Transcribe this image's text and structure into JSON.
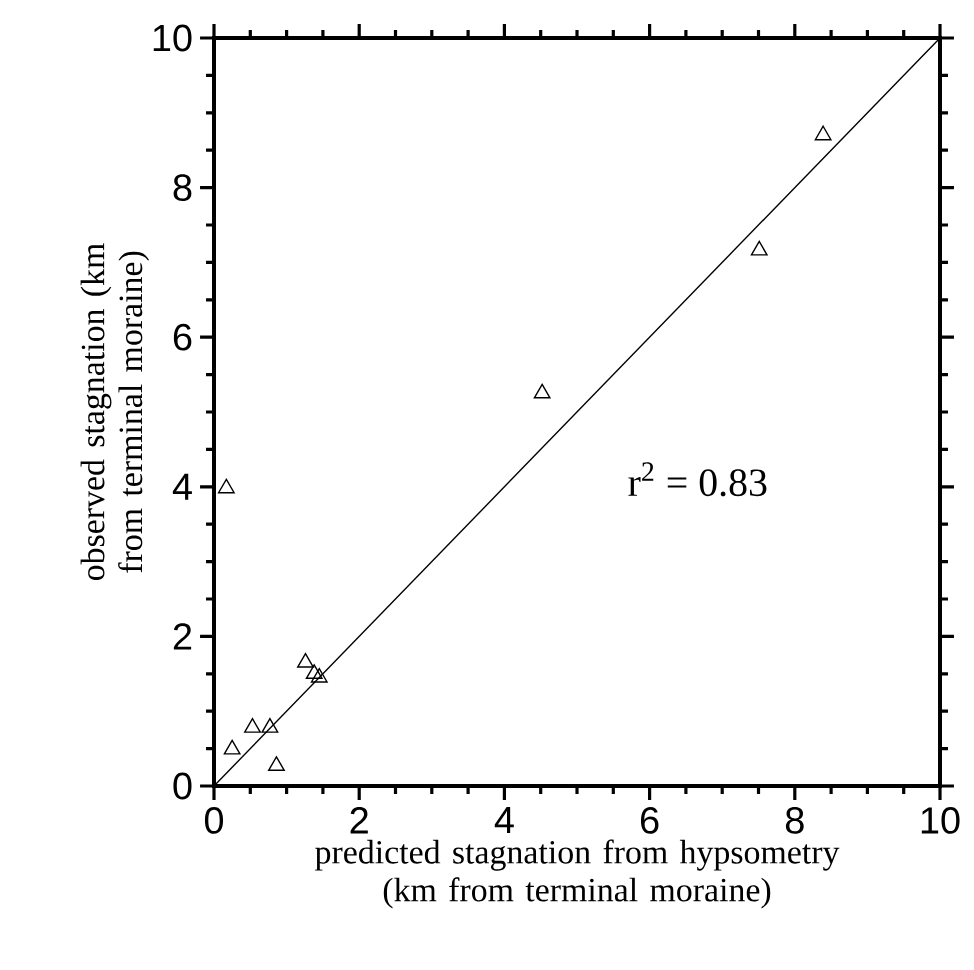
{
  "chart_data": {
    "type": "scatter",
    "xlabel": "predicted stagnation from hypsometry (km from terminal moraine)",
    "ylabel": "observed stagnation (km from terminal moraine)",
    "xlim": [
      0,
      10
    ],
    "ylim": [
      0,
      10
    ],
    "xticks": [
      0,
      2,
      4,
      6,
      8,
      10
    ],
    "yticks": [
      0,
      2,
      4,
      6,
      8,
      10
    ],
    "grid": false,
    "series": [
      {
        "marker": "triangle",
        "color": "#000000",
        "x": [
          8.39,
          7.51,
          4.52,
          0.17,
          1.26,
          1.38,
          1.45,
          0.25,
          0.53,
          0.77,
          0.86
        ],
        "values": [
          8.7,
          7.16,
          5.25,
          3.98,
          1.65,
          1.5,
          1.45,
          0.49,
          0.78,
          0.78,
          0.27
        ]
      },
      {
        "type": "line",
        "marker": "none",
        "color": "#000000",
        "x": [
          0,
          10
        ],
        "values": [
          0,
          10
        ]
      }
    ],
    "annotations": [
      "r$^{2}$ = 0.83"
    ]
  }
}
